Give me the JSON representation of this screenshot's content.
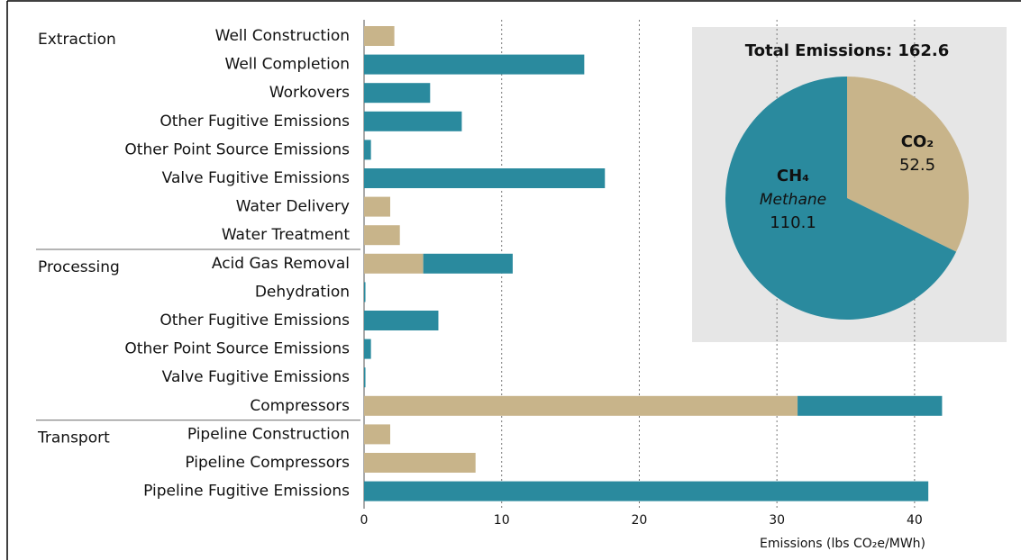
{
  "chart_data": [
    {
      "type": "bar",
      "xlabel": "Emissions (lbs CO₂e/MWh)",
      "groups": [
        {
          "name": "Extraction",
          "categories": [
            "Well Construction",
            "Well Completion",
            "Workovers",
            "Other Fugitive Emissions",
            "Other Point Source Emissions",
            "Valve Fugitive Emissions",
            "Water Delivery",
            "Water Treatment"
          ]
        },
        {
          "name": "Processing",
          "categories": [
            "Acid Gas Removal",
            "Dehydration",
            "Other Fugitive Emissions",
            "Other Point Source Emissions",
            "Valve Fugitive Emissions",
            "Compressors"
          ]
        },
        {
          "name": "Transport",
          "categories": [
            "Pipeline Construction",
            "Pipeline Compressors",
            "Pipeline Fugitive Emissions"
          ]
        }
      ],
      "series": [
        {
          "name": "CO₂",
          "color": "#c8b48a",
          "values": [
            2.2,
            0,
            0,
            0,
            0,
            0,
            1.9,
            2.6,
            4.3,
            0,
            0,
            0,
            0,
            31.5,
            1.9,
            8.1,
            0
          ]
        },
        {
          "name": "CH₄",
          "color": "#2a8a9e",
          "values": [
            0,
            16.0,
            4.8,
            7.1,
            0.5,
            17.5,
            0,
            0,
            6.5,
            0.1,
            5.4,
            0.5,
            0.1,
            10.5,
            0,
            0,
            41.0
          ]
        }
      ],
      "xlim": [
        0,
        42.3
      ],
      "xticks": [
        0,
        10,
        20,
        30,
        40
      ],
      "grid": true
    },
    {
      "type": "pie",
      "title": "Total Emissions: 162.6",
      "categories": [
        "CO₂",
        "CH₄"
      ],
      "annotations": [
        null,
        "Methane"
      ],
      "values": [
        52.5,
        110.1
      ],
      "colors": [
        "#c8b48a",
        "#2a8a9e"
      ]
    }
  ]
}
